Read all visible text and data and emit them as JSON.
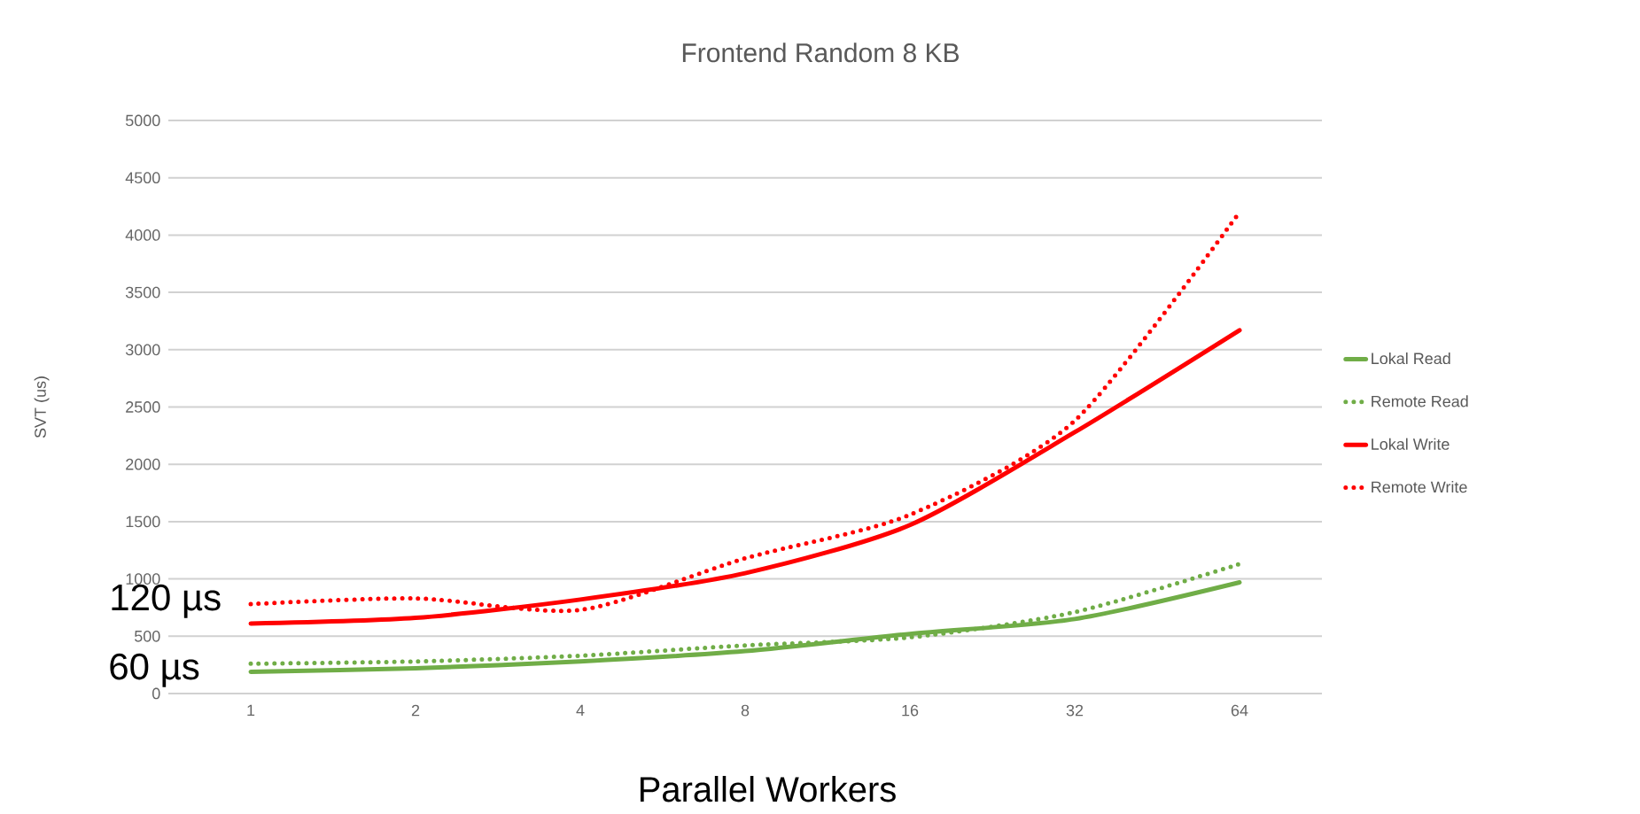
{
  "chart_data": {
    "type": "line",
    "title": "Frontend Random 8 KB",
    "xlabel": "Parallel Workers",
    "ylabel": "SVT (us)",
    "categories": [
      "1",
      "2",
      "4",
      "8",
      "16",
      "32",
      "64"
    ],
    "series": [
      {
        "name": "Lokal Read",
        "color": "#70ad47",
        "line_style": "solid",
        "values": [
          190,
          220,
          280,
          370,
          520,
          650,
          970
        ]
      },
      {
        "name": "Remote Read",
        "color": "#70ad47",
        "line_style": "dotted",
        "values": [
          260,
          280,
          330,
          420,
          490,
          710,
          1130
        ]
      },
      {
        "name": "Lokal Write",
        "color": "#ff0000",
        "line_style": "solid",
        "values": [
          610,
          660,
          820,
          1050,
          1470,
          2280,
          3170
        ]
      },
      {
        "name": "Remote Write",
        "color": "#ff0000",
        "line_style": "dotted",
        "values": [
          780,
          830,
          730,
          1180,
          1560,
          2380,
          4200
        ]
      }
    ],
    "ylim": [
      0,
      5000
    ],
    "yticks": [
      0,
      500,
      1000,
      1500,
      2000,
      2500,
      3000,
      3500,
      4000,
      4500,
      5000
    ],
    "grid": "y",
    "legend": "right",
    "marker": "none",
    "annotations": [
      "120 µs",
      "60 µs"
    ]
  }
}
